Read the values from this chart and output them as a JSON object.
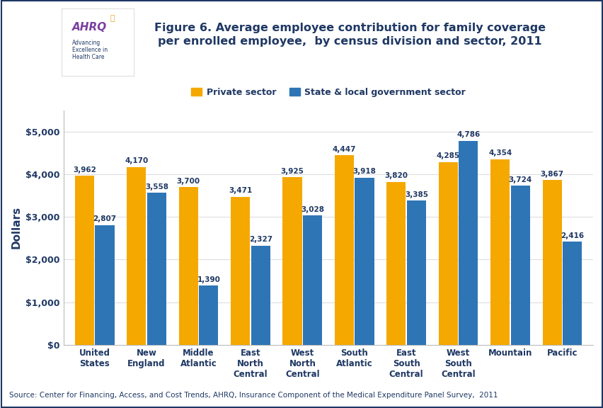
{
  "title": "Figure 6. Average employee contribution for family coverage\nper enrolled employee,  by census division and sector, 2011",
  "categories": [
    "United\nStates",
    "New\nEngland",
    "Middle\nAtlantic",
    "East\nNorth\nCentral",
    "West\nNorth\nCentral",
    "South\nAtlantic",
    "East\nSouth\nCentral",
    "West\nSouth\nCentral",
    "Mountain",
    "Pacific"
  ],
  "private_sector": [
    3962,
    4170,
    3700,
    3471,
    3925,
    4447,
    3820,
    4285,
    4354,
    3867
  ],
  "govt_sector": [
    2807,
    3558,
    1390,
    2327,
    3028,
    3918,
    3385,
    4786,
    3724,
    2416
  ],
  "private_color": "#F5A800",
  "govt_color": "#2E75B6",
  "ylabel": "Dollars",
  "ylim": [
    0,
    5500
  ],
  "yticks": [
    0,
    1000,
    2000,
    3000,
    4000,
    5000
  ],
  "ytick_labels": [
    "$0",
    "$1,000",
    "$2,000",
    "$3,000",
    "$4,000",
    "$5,000"
  ],
  "legend_private": "Private sector",
  "legend_govt": "State & local government sector",
  "source_text": "Source: Center for Financing, Access, and Cost Trends, AHRQ, Insurance Component of the Medical Expenditure Panel Survey,  2011",
  "title_color": "#1F3864",
  "label_color": "#1F3864",
  "background_color": "#FFFFFF",
  "header_line_color": "#1F3864",
  "outer_border_color": "#1F3864",
  "logo_bg_left": "#4A90C8",
  "logo_bg_right": "#FFFFFF"
}
